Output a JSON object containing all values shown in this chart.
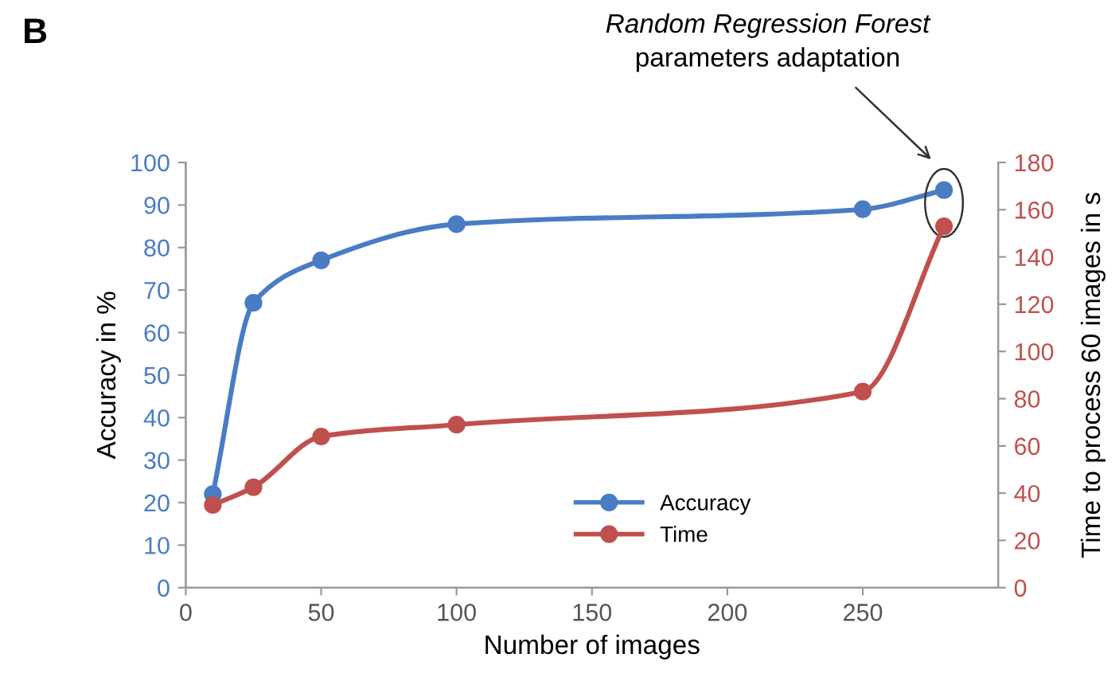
{
  "chart_data": {
    "type": "line",
    "xlabel": "Number of images",
    "ylabel": "Accuracy in %",
    "y2label": "Time to process 60 images in s",
    "x": [
      10,
      25,
      50,
      100,
      250,
      280
    ],
    "series": [
      {
        "name": "Accuracy",
        "color": "#4a7cc4",
        "values": [
          22,
          67,
          77,
          85.5,
          89,
          93.5
        ]
      },
      {
        "name": "Time",
        "color": "#c0504d",
        "axis": "y2",
        "values": [
          35,
          42.5,
          64,
          69,
          83,
          153
        ]
      }
    ],
    "xlim": [
      0,
      300
    ],
    "xticks": [
      0,
      50,
      100,
      150,
      200,
      250
    ],
    "ylim": [
      0,
      100
    ],
    "yticks": [
      0,
      10,
      20,
      30,
      40,
      50,
      60,
      70,
      80,
      90,
      100
    ],
    "y2lim": [
      0,
      180
    ],
    "y2ticks": [
      0,
      20,
      40,
      60,
      80,
      100,
      120,
      140,
      160,
      180
    ],
    "marker": "circle",
    "line_style": "solid",
    "grid": false,
    "legend": "bottom right",
    "annotations": [
      "B",
      "Random Regression Forest",
      "parameters adaptation"
    ]
  }
}
